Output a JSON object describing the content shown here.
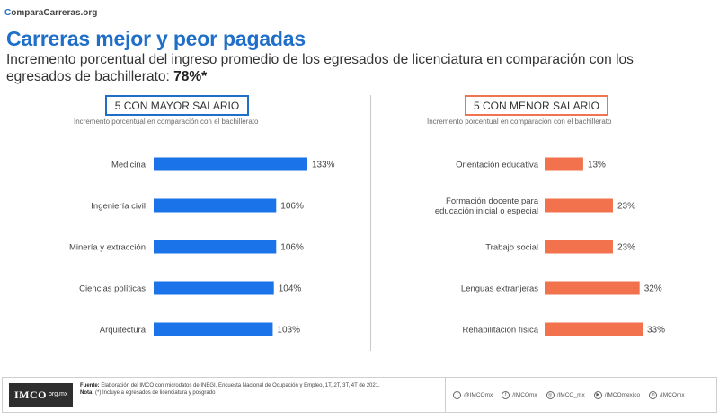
{
  "brand": {
    "initial": "C",
    "rest": "omparaCarreras.org"
  },
  "header": {
    "title": "Carreras mejor y peor pagadas",
    "subtitle": "Incremento porcentual del ingreso promedio de los egresados de licenciatura en comparación con los egresados de bachillerato: ",
    "subtitle_value": "78%*"
  },
  "colors": {
    "accent": "#1f6fc8",
    "high_bar": "#1a73e8",
    "low_bar": "#f2724d"
  },
  "chart_data": [
    {
      "type": "bar",
      "orientation": "horizontal",
      "title": "5 CON MAYOR SALARIO",
      "subtitle": "Incremento porcentual en comparación con el bachillerato",
      "categories": [
        "Medicina",
        "Ingeniería civil",
        "Minería y extracción",
        "Ciencias políticas",
        "Arquitectura"
      ],
      "values": [
        133,
        106,
        106,
        104,
        103
      ],
      "value_labels": [
        "133%",
        "106%",
        "106%",
        "104%",
        "103%"
      ],
      "unit": "%",
      "color": "#1a73e8",
      "grid": false
    },
    {
      "type": "bar",
      "orientation": "horizontal",
      "title": "5 CON MENOR SALARIO",
      "subtitle": "Incremento porcentual en comparación con el bachillerato",
      "categories": [
        "Orientación educativa",
        "Formación docente para educación inicial o especial",
        "Trabajo social",
        "Lenguas extranjeras",
        "Rehabilitación física"
      ],
      "category_lines": [
        [
          "Orientación educativa"
        ],
        [
          "Formación docente para",
          "educación inicial o especial"
        ],
        [
          "Trabajo social"
        ],
        [
          "Lenguas extranjeras"
        ],
        [
          "Rehabilitación física"
        ]
      ],
      "values": [
        13,
        23,
        23,
        32,
        33
      ],
      "value_labels": [
        "13%",
        "23%",
        "23%",
        "32%",
        "33%"
      ],
      "unit": "%",
      "color": "#f2724d",
      "grid": false
    }
  ],
  "footer": {
    "logo_main": "IMCO",
    "logo_sub": "org.mx",
    "source_label": "Fuente:",
    "source_text": " Elaboración del IMCO  con microdatos de INEGI.  Encuesta Nacional de Ocupación y Empleo,  1T, 2T, 3T, 4T de 2021.",
    "note_label": "Nota:",
    "note_text": " (*) Incluye a egresados de licenciatura y posgrado",
    "socials": [
      {
        "icon": "twitter-icon",
        "glyph": "t",
        "handle": "@IMCOmx"
      },
      {
        "icon": "facebook-icon",
        "glyph": "f",
        "handle": "/IMCOmx"
      },
      {
        "icon": "instagram-icon",
        "glyph": "◎",
        "handle": "/IMCO_mx"
      },
      {
        "icon": "youtube-icon",
        "glyph": "▶",
        "handle": "/IMCOmexico"
      },
      {
        "icon": "linkedin-icon",
        "glyph": "in",
        "handle": "/IMCOmx"
      }
    ]
  }
}
